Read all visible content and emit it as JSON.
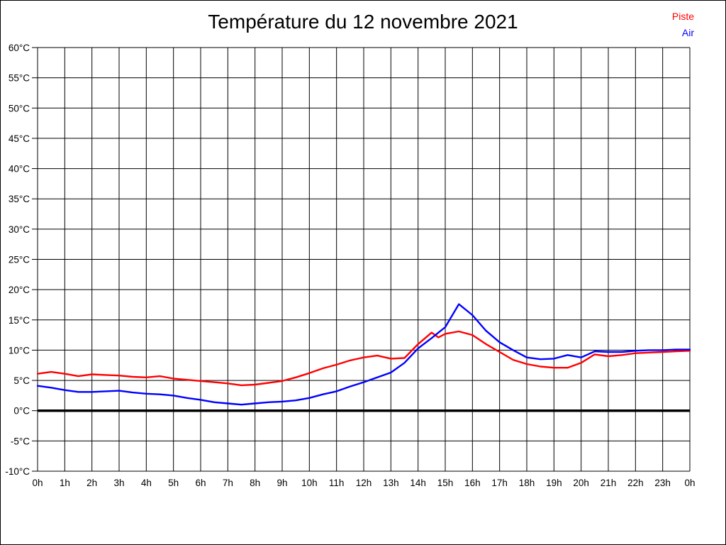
{
  "header": {
    "title": "Température du 12 novembre 2021"
  },
  "legend": {
    "items": [
      {
        "label": "Piste",
        "color": "#ff0000"
      },
      {
        "label": "Air",
        "color": "#0000ff"
      }
    ]
  },
  "chart_data": {
    "type": "line",
    "title": "Température du 12 novembre 2021",
    "xlabel": "",
    "ylabel": "",
    "xlim": [
      0,
      24
    ],
    "ylim": [
      -10,
      60
    ],
    "y_tick_step": 5,
    "grid": true,
    "zero_line": true,
    "legend_position": "top-right",
    "x_tick_labels": [
      "0h",
      "1h",
      "2h",
      "3h",
      "4h",
      "5h",
      "6h",
      "7h",
      "8h",
      "9h",
      "10h",
      "11h",
      "12h",
      "13h",
      "14h",
      "15h",
      "16h",
      "17h",
      "18h",
      "19h",
      "20h",
      "21h",
      "22h",
      "23h",
      "0h"
    ],
    "y_tick_labels": [
      "60°C",
      "55°C",
      "50°C",
      "45°C",
      "40°C",
      "35°C",
      "30°C",
      "25°C",
      "20°C",
      "15°C",
      "10°C",
      "5°C",
      "0°C",
      "-5°C",
      "-10°C"
    ],
    "series": [
      {
        "name": "Piste",
        "color": "#ff0000",
        "x": [
          0,
          0.5,
          1,
          1.5,
          2,
          2.5,
          3,
          3.5,
          4,
          4.5,
          5,
          5.5,
          6,
          6.5,
          7,
          7.5,
          8,
          8.5,
          9,
          9.5,
          10,
          10.5,
          11,
          11.5,
          12,
          12.5,
          13,
          13.5,
          14,
          14.5,
          14.75,
          15,
          15.5,
          16,
          16.5,
          17,
          17.5,
          18,
          18.5,
          19,
          19.5,
          20,
          20.5,
          21,
          21.5,
          22,
          22.5,
          23,
          23.5,
          24
        ],
        "values": [
          6.1,
          6.4,
          6.1,
          5.7,
          6.0,
          5.9,
          5.8,
          5.6,
          5.5,
          5.7,
          5.3,
          5.1,
          4.9,
          4.7,
          4.5,
          4.2,
          4.3,
          4.6,
          4.9,
          5.5,
          6.2,
          7.0,
          7.6,
          8.3,
          8.8,
          9.1,
          8.6,
          8.7,
          11.0,
          12.9,
          12.1,
          12.7,
          13.1,
          12.5,
          11.0,
          9.7,
          8.4,
          7.7,
          7.3,
          7.1,
          7.1,
          7.9,
          9.3,
          9.0,
          9.2,
          9.5,
          9.6,
          9.7,
          9.8,
          9.9
        ]
      },
      {
        "name": "Air",
        "color": "#0000ff",
        "x": [
          0,
          0.5,
          1,
          1.5,
          2,
          2.5,
          3,
          3.5,
          4,
          4.5,
          5,
          5.5,
          6,
          6.5,
          7,
          7.5,
          8,
          8.5,
          9,
          9.5,
          10,
          10.5,
          11,
          11.5,
          12,
          12.5,
          13,
          13.5,
          14,
          14.5,
          14.75,
          15,
          15.5,
          16,
          16.5,
          17,
          17.5,
          18,
          18.5,
          19,
          19.5,
          20,
          20.5,
          21,
          21.5,
          22,
          22.5,
          23,
          23.5,
          24
        ],
        "values": [
          4.1,
          3.8,
          3.4,
          3.1,
          3.1,
          3.2,
          3.3,
          3.0,
          2.8,
          2.7,
          2.5,
          2.1,
          1.8,
          1.4,
          1.2,
          1.0,
          1.2,
          1.4,
          1.5,
          1.7,
          2.1,
          2.7,
          3.2,
          4.0,
          4.7,
          5.5,
          6.3,
          7.9,
          10.3,
          12.0,
          12.9,
          13.8,
          17.6,
          15.8,
          13.2,
          11.3,
          10.0,
          8.8,
          8.5,
          8.6,
          9.2,
          8.8,
          9.8,
          9.7,
          9.7,
          9.9,
          10.0,
          10.0,
          10.1,
          10.1
        ]
      }
    ]
  }
}
